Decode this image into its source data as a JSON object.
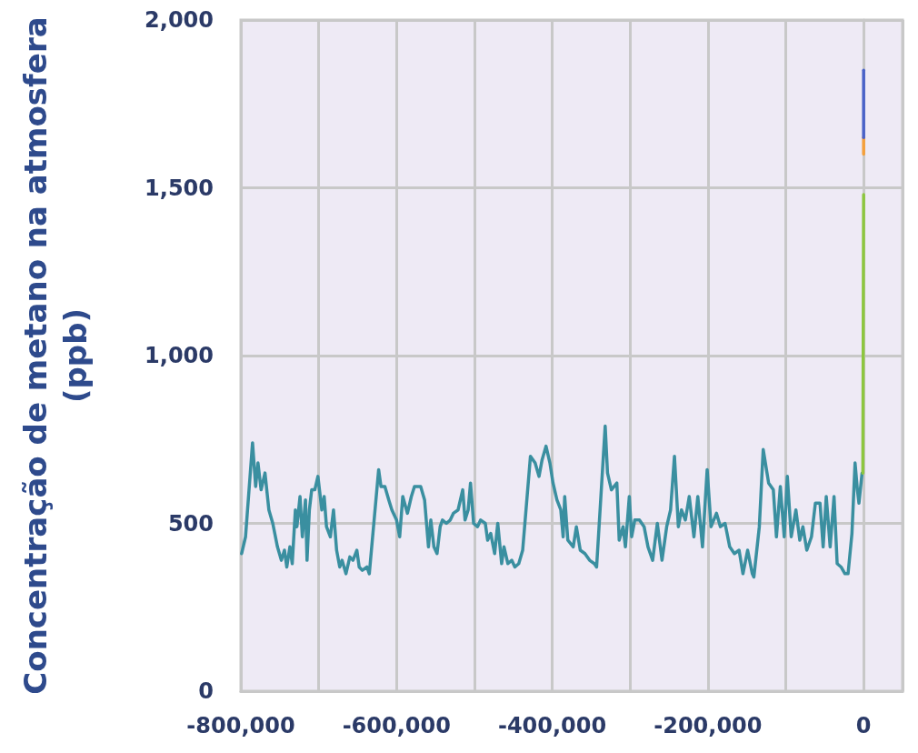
{
  "chart_data": {
    "type": "line",
    "ylabel": "Concentração de metano na atmosfera\n(ppb)",
    "xlim": [
      -800000,
      50000
    ],
    "xticks": [
      {
        "value": -800000,
        "label": "-800,000"
      },
      {
        "value": -700000,
        "label": null
      },
      {
        "value": -600000,
        "label": "-600,000"
      },
      {
        "value": -500000,
        "label": null
      },
      {
        "value": -400000,
        "label": "-400,000"
      },
      {
        "value": -300000,
        "label": null
      },
      {
        "value": -200000,
        "label": "-200,000"
      },
      {
        "value": -100000,
        "label": null
      },
      {
        "value": 0,
        "label": "0"
      }
    ],
    "ylim": [
      0,
      2000
    ],
    "yticks": [
      {
        "value": 0,
        "label": "0"
      },
      {
        "value": 500,
        "label": "500"
      },
      {
        "value": 1000,
        "label": "1,000"
      },
      {
        "value": 1500,
        "label": "1,500"
      },
      {
        "value": 2000,
        "label": "2,000"
      }
    ],
    "grid": true,
    "marker": "none",
    "line_style": "solid",
    "series": [
      {
        "color": "#3a8fa0",
        "x": [
          -799000,
          -794000,
          -785000,
          -781000,
          -778000,
          -774000,
          -769000,
          -764000,
          -759000,
          -753000,
          -748000,
          -744000,
          -741000,
          -737000,
          -734000,
          -730000,
          -728000,
          -724000,
          -721000,
          -717000,
          -715000,
          -712000,
          -709000,
          -705000,
          -701000,
          -696000,
          -693000,
          -690000,
          -685000,
          -681000,
          -677000,
          -673000,
          -670000,
          -665000,
          -660000,
          -656000,
          -651000,
          -648000,
          -644000,
          -638000,
          -635000,
          -623000,
          -620000,
          -615000,
          -610000,
          -606000,
          -600000,
          -596000,
          -592000,
          -586000,
          -581000,
          -577000,
          -569000,
          -564000,
          -559000,
          -556000,
          -552000,
          -548000,
          -544000,
          -541000,
          -536000,
          -531000,
          -527000,
          -521000,
          -515000,
          -512000,
          -508000,
          -505000,
          -501000,
          -496000,
          -492000,
          -486000,
          -483000,
          -479000,
          -474000,
          -470000,
          -465000,
          -462000,
          -457000,
          -452000,
          -448000,
          -443000,
          -438000,
          -428000,
          -422000,
          -417000,
          -413000,
          -408000,
          -403000,
          -399000,
          -394000,
          -389000,
          -386000,
          -384000,
          -380000,
          -373000,
          -369000,
          -364000,
          -358000,
          -352000,
          -346000,
          -343000,
          -332000,
          -329000,
          -324000,
          -317000,
          -314000,
          -309000,
          -306000,
          -301000,
          -298000,
          -294000,
          -288000,
          -282000,
          -277000,
          -271000,
          -265000,
          -259000,
          -253000,
          -248000,
          -243000,
          -238000,
          -234000,
          -229000,
          -224000,
          -218000,
          -213000,
          -207000,
          -201000,
          -196000,
          -189000,
          -184000,
          -178000,
          -172000,
          -166000,
          -160000,
          -155000,
          -149000,
          -143000,
          -141000,
          -134000,
          -129000,
          -122000,
          -116000,
          -112000,
          -107000,
          -102000,
          -98000,
          -93000,
          -87000,
          -82000,
          -78000,
          -73000,
          -67000,
          -62000,
          -56000,
          -52000,
          -48000,
          -43000,
          -38000,
          -34000,
          -29000,
          -24000,
          -20000,
          -15000,
          -11000,
          -8000,
          -6000,
          -2000
        ],
        "values": [
          410,
          460,
          740,
          610,
          680,
          600,
          650,
          540,
          500,
          430,
          390,
          420,
          370,
          430,
          380,
          540,
          490,
          580,
          460,
          570,
          390,
          540,
          600,
          600,
          640,
          540,
          580,
          490,
          460,
          540,
          420,
          370,
          390,
          350,
          400,
          390,
          420,
          370,
          360,
          370,
          350,
          660,
          610,
          610,
          570,
          540,
          510,
          460,
          580,
          530,
          580,
          610,
          610,
          570,
          430,
          510,
          430,
          410,
          490,
          510,
          500,
          510,
          530,
          540,
          600,
          510,
          540,
          620,
          500,
          490,
          510,
          500,
          450,
          470,
          410,
          500,
          380,
          430,
          380,
          390,
          370,
          380,
          420,
          700,
          680,
          640,
          690,
          730,
          680,
          620,
          570,
          540,
          460,
          580,
          450,
          430,
          490,
          420,
          410,
          390,
          380,
          370,
          790,
          650,
          600,
          620,
          450,
          490,
          430,
          580,
          460,
          510,
          510,
          490,
          430,
          390,
          500,
          390,
          490,
          540,
          700,
          490,
          540,
          510,
          580,
          460,
          580,
          430,
          660,
          490,
          530,
          490,
          500,
          430,
          410,
          420,
          350,
          420,
          350,
          340,
          490,
          720,
          620,
          600,
          460,
          610,
          460,
          640,
          460,
          540,
          450,
          490,
          420,
          460,
          560,
          560,
          430,
          580,
          430,
          580,
          380,
          370,
          350,
          350,
          470,
          680,
          600,
          560,
          650
        ]
      },
      {
        "color": "#8dc63f",
        "x": [
          -1000,
          0
        ],
        "values": [
          650,
          1480
        ]
      },
      {
        "color": "#f5a03c",
        "x": [
          0,
          0
        ],
        "values": [
          1600,
          1650
        ]
      },
      {
        "color": "#4a63c8",
        "x": [
          0,
          0
        ],
        "values": [
          1650,
          1850
        ]
      }
    ]
  }
}
